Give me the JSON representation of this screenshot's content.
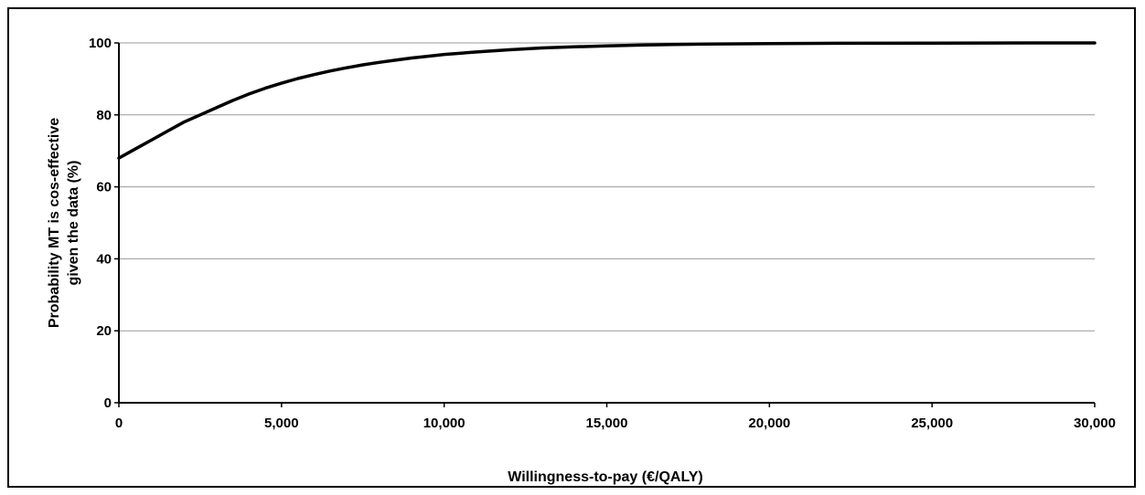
{
  "chart_data": {
    "type": "line",
    "title": "",
    "xlabel": "Willingness-to-pay (€/QALY)",
    "ylabel_lines": [
      "Probability MT is cos-effective",
      "given the data (%)"
    ],
    "xlim": [
      0,
      30000
    ],
    "ylim": [
      0,
      100
    ],
    "x_ticks": [
      0,
      5000,
      10000,
      15000,
      20000,
      25000,
      30000
    ],
    "x_tick_labels": [
      "0",
      "5,000",
      "10,000",
      "15,000",
      "20,000",
      "25,000",
      "30,000"
    ],
    "y_ticks": [
      0,
      20,
      40,
      60,
      80,
      100
    ],
    "y_tick_labels": [
      "0",
      "20",
      "40",
      "60",
      "80",
      "100"
    ],
    "grid": "horizontal",
    "line_color": "#000000",
    "grid_color": "#999999",
    "series": [
      {
        "x": [
          0,
          500,
          1000,
          1500,
          2000,
          2500,
          3000,
          3500,
          4000,
          4500,
          5000,
          5500,
          6000,
          6500,
          7000,
          7500,
          8000,
          8500,
          9000,
          9500,
          10000,
          11000,
          12000,
          13000,
          14000,
          15000,
          16000,
          17000,
          18000,
          20000,
          22000,
          25000,
          28000,
          30000
        ],
        "y": [
          68,
          70.5,
          73,
          75.5,
          78,
          80,
          82,
          84,
          85.8,
          87.4,
          88.8,
          90.1,
          91.2,
          92.2,
          93.1,
          93.9,
          94.6,
          95.2,
          95.8,
          96.3,
          96.8,
          97.5,
          98.1,
          98.6,
          98.9,
          99.2,
          99.4,
          99.55,
          99.7,
          99.8,
          99.9,
          99.95,
          100,
          100
        ]
      }
    ]
  }
}
